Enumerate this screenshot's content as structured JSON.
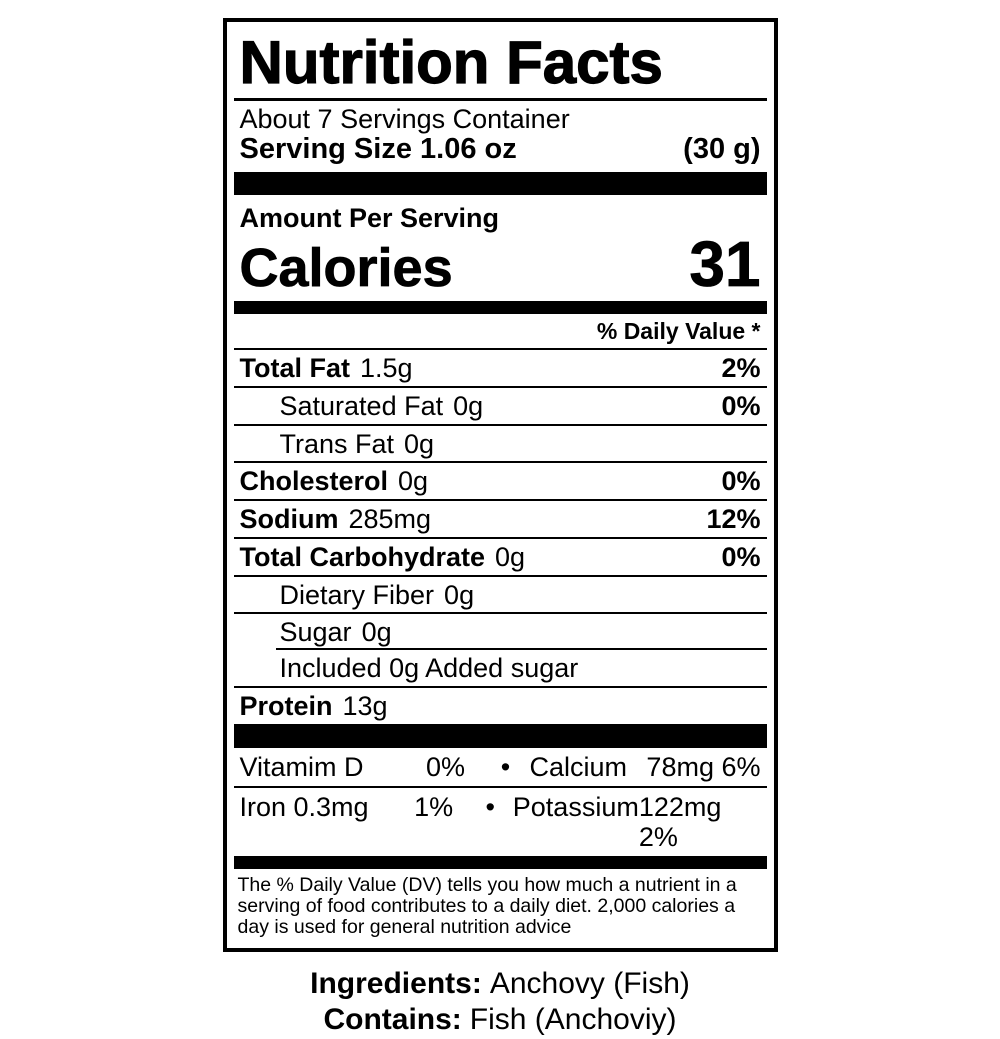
{
  "label": {
    "title": "Nutrition Facts",
    "servings_line": "About 7 Servings Container",
    "serving_size_label": "Serving Size 1.06 oz",
    "serving_size_metric": "(30 g)",
    "amount_per_serving": "Amount Per Serving",
    "calories_label": "Calories",
    "calories_value": "31",
    "daily_value_header": "% Daily Value *",
    "bullet": "•",
    "nutrients": [
      {
        "name": "Total Fat",
        "amount": "1.5g",
        "dv": "2%"
      },
      {
        "name": "Saturated Fat",
        "amount": "0g",
        "dv": "0%"
      },
      {
        "name": "Trans Fat",
        "amount": "0g",
        "dv": ""
      },
      {
        "name": "Cholesterol",
        "amount": "0g",
        "dv": "0%"
      },
      {
        "name": "Sodium",
        "amount": "285mg",
        "dv": "12%"
      },
      {
        "name": "Total Carbohydrate",
        "amount": "0g",
        "dv": "0%"
      },
      {
        "name": "Dietary Fiber",
        "amount": "0g",
        "dv": ""
      },
      {
        "name": "Sugar",
        "amount": "0g",
        "dv": ""
      },
      {
        "name": "Included 0g Added sugar",
        "amount": "",
        "dv": ""
      },
      {
        "name": "Protein",
        "amount": "13g",
        "dv": ""
      }
    ],
    "micronutrients": [
      {
        "left_name": "Vitamim D",
        "left_value": "0%",
        "right_name": "Calcium",
        "right_value": "78mg 6%"
      },
      {
        "left_name": "Iron 0.3mg",
        "left_value": "1%",
        "right_name": "Potassium",
        "right_value": "122mg 2%"
      }
    ],
    "footnote": "The % Daily Value (DV) tells you how much a nutrient in a serving of food contributes to a daily diet. 2,000 calories a day is used for general nutrition advice"
  },
  "below": {
    "ingredients_label": "Ingredients:",
    "ingredients_value": "Anchovy (Fish)",
    "contains_label": "Contains:",
    "contains_value": "Fish (Anchoviy)"
  },
  "colors": {
    "ink": "#000000",
    "background": "#ffffff"
  }
}
